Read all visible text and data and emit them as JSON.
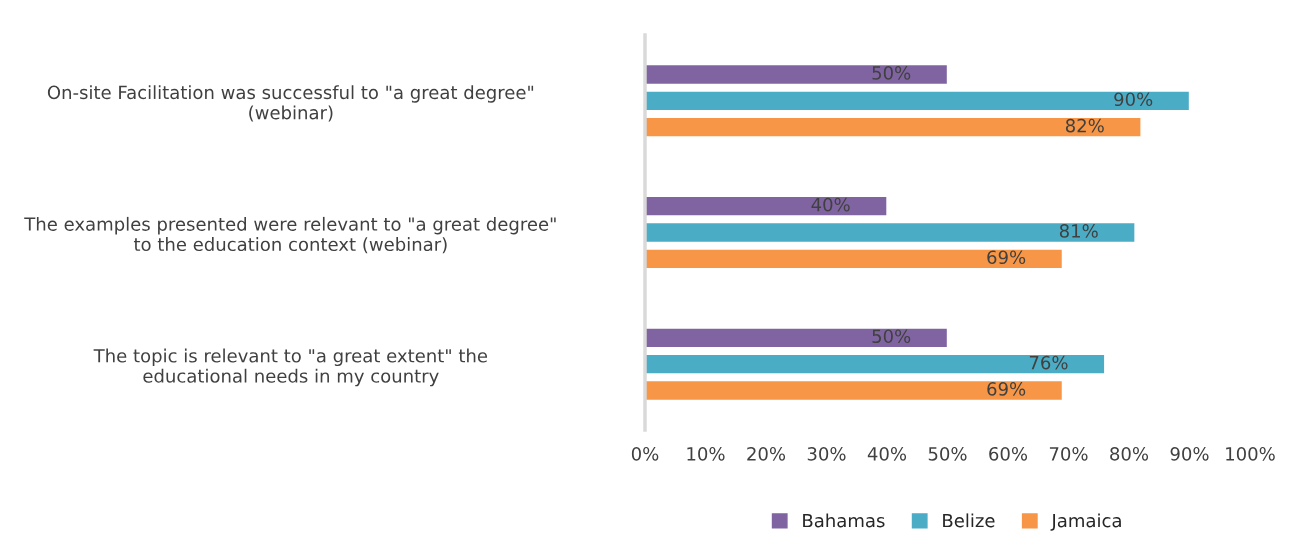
{
  "chart_data": {
    "type": "bar",
    "orientation": "horizontal",
    "categories": [
      "On-site Facilitation was successful to \"a great degree\" (webinar)",
      "The examples presented were relevant to \"a great degree\" to the education context (webinar)",
      "The topic is relevant to \"a great extent\" the educational needs in my country"
    ],
    "series": [
      {
        "name": "Bahamas",
        "color": "#8064a2",
        "values": [
          50,
          40,
          50
        ],
        "value_labels": [
          "50%",
          "40%",
          "50%"
        ]
      },
      {
        "name": "Belize",
        "color": "#4bacc6",
        "values": [
          90,
          81,
          76
        ],
        "value_labels": [
          "90%",
          "81%",
          "76%"
        ]
      },
      {
        "name": "Jamaica",
        "color": "#f79646",
        "values": [
          82,
          69,
          69
        ],
        "value_labels": [
          "82%",
          "69%",
          "69%"
        ]
      }
    ],
    "xlim": [
      0,
      100
    ],
    "xticks": [
      {
        "value": 0,
        "label": "0%"
      },
      {
        "value": 10,
        "label": "10%"
      },
      {
        "value": 20,
        "label": "20%"
      },
      {
        "value": 30,
        "label": "30%"
      },
      {
        "value": 40,
        "label": "40%"
      },
      {
        "value": 50,
        "label": "50%"
      },
      {
        "value": 60,
        "label": "60%"
      },
      {
        "value": 70,
        "label": "70%"
      },
      {
        "value": 80,
        "label": "80%"
      },
      {
        "value": 90,
        "label": "90%"
      },
      {
        "value": 100,
        "label": "100%"
      }
    ],
    "legend": "bottom",
    "grid": false
  }
}
